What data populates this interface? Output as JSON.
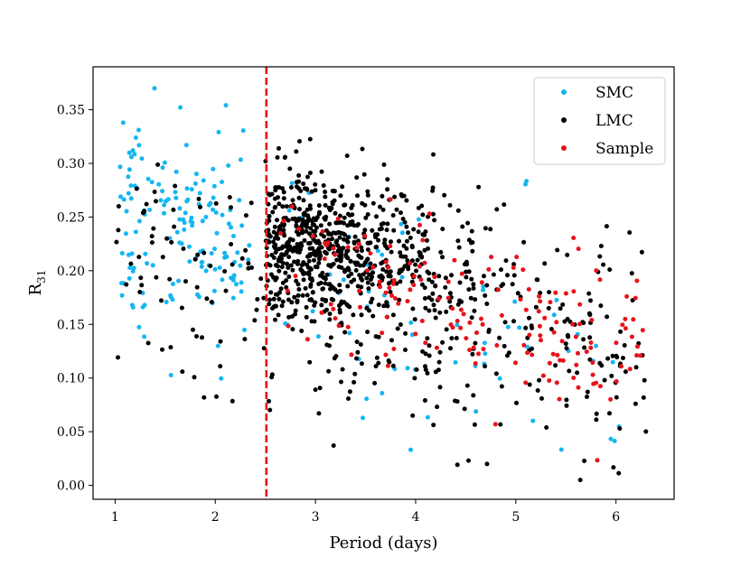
{
  "chart_data": {
    "type": "scatter",
    "title": "",
    "xlabel": "Period (days)",
    "ylabel_base": "R",
    "ylabel_sub": "31",
    "xlim": [
      0.78,
      6.58
    ],
    "ylim": [
      -0.013,
      0.39
    ],
    "xticks": [
      1,
      2,
      3,
      4,
      5,
      6
    ],
    "xtick_labels": [
      "1",
      "2",
      "3",
      "4",
      "5",
      "6"
    ],
    "yticks": [
      0.0,
      0.05,
      0.1,
      0.15,
      0.2,
      0.25,
      0.3,
      0.35
    ],
    "ytick_labels": [
      "0.00",
      "0.05",
      "0.10",
      "0.15",
      "0.20",
      "0.25",
      "0.30",
      "0.35"
    ],
    "grid": false,
    "legend_position": "top-right",
    "vline": {
      "x": 2.51,
      "color": "#e8121a",
      "style": "dashed"
    },
    "series": [
      {
        "name": "SMC",
        "color": "#16b6f0",
        "count": 220
      },
      {
        "name": "LMC",
        "color": "#000000",
        "count": 1000
      },
      {
        "name": "Sample",
        "color": "#e8121a",
        "count": 170
      }
    ]
  }
}
